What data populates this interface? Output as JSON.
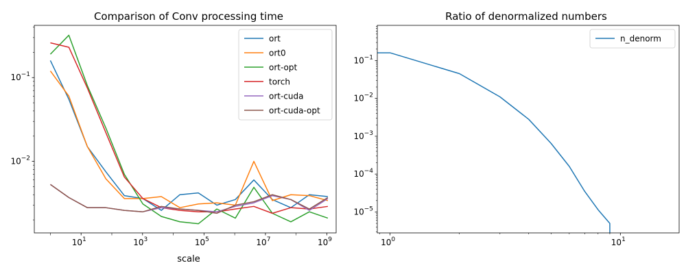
{
  "chart_data": [
    {
      "type": "line",
      "title": "Comparison of Conv processing time",
      "xlabel": "scale",
      "ylabel": "",
      "xscale": "log",
      "yscale": "log",
      "xlim": [
        0.3,
        2000000000
      ],
      "ylim": [
        0.0014,
        0.42
      ],
      "xticks": [
        {
          "value": 10,
          "base": "10",
          "exp": "1"
        },
        {
          "value": 1000,
          "base": "10",
          "exp": "3"
        },
        {
          "value": 100000,
          "base": "10",
          "exp": "5"
        },
        {
          "value": 10000000,
          "base": "10",
          "exp": "7"
        },
        {
          "value": 1000000000,
          "base": "10",
          "exp": "9"
        }
      ],
      "yticks": [
        {
          "value": 0.01,
          "base": "10",
          "exp": "−2"
        },
        {
          "value": 0.1,
          "base": "10",
          "exp": "−1"
        }
      ],
      "grid": false,
      "legend_position": "top-right",
      "x": [
        1,
        4,
        16,
        64,
        256,
        1024,
        4096,
        16384,
        65536,
        262144,
        1048576,
        4194304,
        16777216,
        67108864,
        268435456,
        1073741824
      ],
      "series": [
        {
          "name": "ort",
          "color": "#1f77b4",
          "values": [
            0.16,
            0.055,
            0.015,
            0.0075,
            0.0039,
            0.0036,
            0.0026,
            0.004,
            0.0042,
            0.003,
            0.0035,
            0.006,
            0.0035,
            0.0028,
            0.004,
            0.0038
          ]
        },
        {
          "name": "ort0",
          "color": "#ff7f0e",
          "values": [
            0.12,
            0.06,
            0.015,
            0.0062,
            0.0036,
            0.0036,
            0.0038,
            0.0028,
            0.0031,
            0.0032,
            0.003,
            0.01,
            0.0034,
            0.004,
            0.0039,
            0.0034
          ]
        },
        {
          "name": "ort-opt",
          "color": "#2ca02c",
          "values": [
            0.19,
            0.32,
            0.08,
            0.025,
            0.007,
            0.0031,
            0.0022,
            0.0019,
            0.0018,
            0.0027,
            0.0021,
            0.0049,
            0.0024,
            0.0019,
            0.0025,
            0.0021
          ]
        },
        {
          "name": "torch",
          "color": "#d62728",
          "values": [
            0.26,
            0.23,
            0.075,
            0.022,
            0.0065,
            0.0036,
            0.0028,
            0.0026,
            0.0025,
            0.0025,
            0.0027,
            0.0029,
            0.0024,
            0.0028,
            0.0027,
            0.0029
          ]
        },
        {
          "name": "ort-cuda",
          "color": "#9467bd",
          "values": [
            0.0053,
            0.0037,
            0.0028,
            0.0028,
            0.0026,
            0.0025,
            0.0028,
            0.0027,
            0.0026,
            0.0025,
            0.0029,
            0.0032,
            0.0039,
            0.0035,
            0.0026,
            0.0036
          ]
        },
        {
          "name": "ort-cuda-opt",
          "color": "#8c564b",
          "values": [
            0.0053,
            0.0037,
            0.0028,
            0.0028,
            0.0026,
            0.0025,
            0.0029,
            0.0027,
            0.0026,
            0.0024,
            0.003,
            0.0033,
            0.004,
            0.0035,
            0.0027,
            0.0037
          ]
        }
      ]
    },
    {
      "type": "line",
      "title": "Ratio of denormalized numbers",
      "xlabel": "",
      "ylabel": "",
      "xscale": "log",
      "yscale": "log",
      "xlim": [
        0.88,
        18
      ],
      "ylim": [
        2.8e-06,
        0.85
      ],
      "xticks": [
        {
          "value": 1,
          "base": "10",
          "exp": "0"
        },
        {
          "value": 10,
          "base": "10",
          "exp": "1"
        }
      ],
      "yticks": [
        {
          "value": 1e-05,
          "base": "10",
          "exp": "−5"
        },
        {
          "value": 0.0001,
          "base": "10",
          "exp": "−4"
        },
        {
          "value": 0.001,
          "base": "10",
          "exp": "−3"
        },
        {
          "value": 0.01,
          "base": "10",
          "exp": "−2"
        },
        {
          "value": 0.1,
          "base": "10",
          "exp": "−1"
        }
      ],
      "grid": false,
      "legend_position": "top-right",
      "x": [
        0.88,
        1,
        2,
        3,
        4,
        5,
        6,
        7,
        8,
        9,
        9.001
      ],
      "series": [
        {
          "name": "n_denorm",
          "color": "#1f77b4",
          "values": [
            0.16,
            0.16,
            0.045,
            0.011,
            0.0028,
            0.00065,
            0.00016,
            3.5e-05,
            1.15e-05,
            5e-06,
            2.8e-06
          ]
        }
      ]
    }
  ]
}
